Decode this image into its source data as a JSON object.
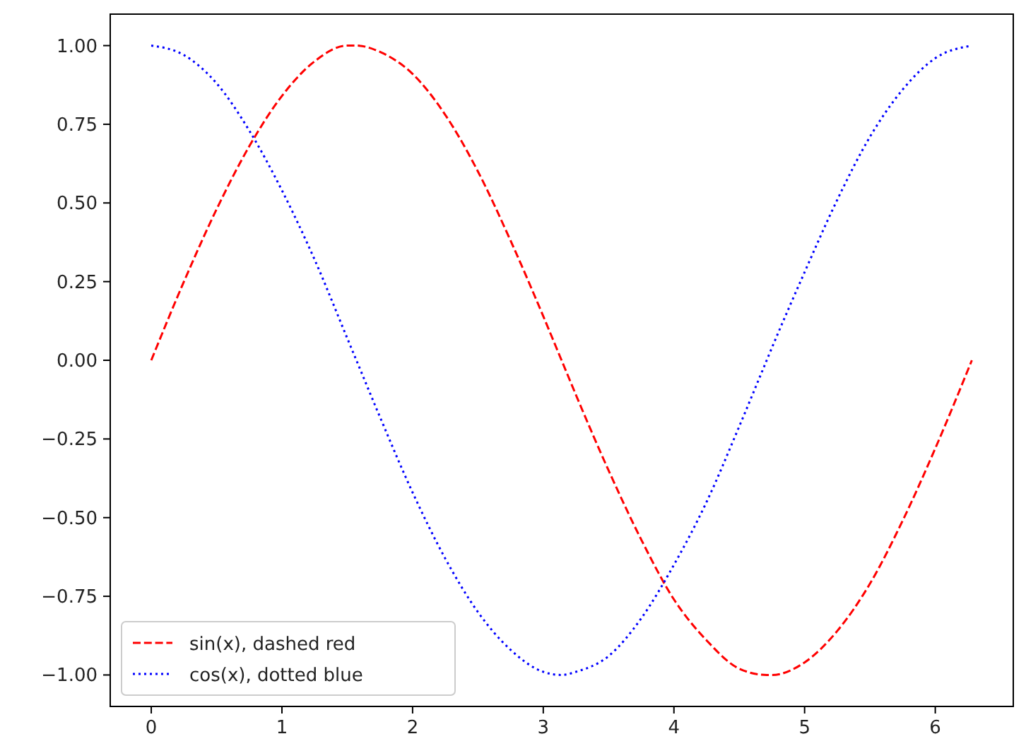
{
  "chart_data": {
    "type": "line",
    "x": [
      0,
      0.25,
      0.5,
      0.75,
      1,
      1.25,
      1.5,
      1.57,
      1.75,
      2,
      2.25,
      2.5,
      2.75,
      3,
      3.14,
      3.25,
      3.5,
      3.75,
      4,
      4.25,
      4.5,
      4.71,
      4.75,
      5,
      5.25,
      5.5,
      5.75,
      6,
      6.28
    ],
    "series": [
      {
        "name": "sin(x), dashed red",
        "color": "#ff0000",
        "line_style": "dashed",
        "values": [
          0,
          0.25,
          0.48,
          0.68,
          0.84,
          0.95,
          1.0,
          1.0,
          0.98,
          0.91,
          0.78,
          0.6,
          0.38,
          0.14,
          0,
          -0.11,
          -0.35,
          -0.57,
          -0.76,
          -0.89,
          -0.98,
          -1.0,
          -1.0,
          -0.96,
          -0.86,
          -0.71,
          -0.51,
          -0.28,
          0
        ]
      },
      {
        "name": "cos(x), dotted blue",
        "color": "#0000ff",
        "line_style": "dotted",
        "values": [
          1,
          0.97,
          0.88,
          0.73,
          0.54,
          0.32,
          0.07,
          0,
          -0.18,
          -0.42,
          -0.63,
          -0.8,
          -0.92,
          -0.99,
          -1.0,
          -0.99,
          -0.94,
          -0.82,
          -0.65,
          -0.45,
          -0.21,
          0,
          0.04,
          0.28,
          0.51,
          0.71,
          0.86,
          0.96,
          1.0
        ]
      }
    ],
    "xlim": [
      -0.314,
      6.597
    ],
    "ylim": [
      -1.1,
      1.1
    ],
    "xticks": [
      0,
      1,
      2,
      3,
      4,
      5,
      6
    ],
    "yticks": [
      {
        "value": -1,
        "label": "−1.00"
      },
      {
        "value": -0.75,
        "label": "−0.75"
      },
      {
        "value": -0.5,
        "label": "−0.50"
      },
      {
        "value": -0.25,
        "label": "−0.25"
      },
      {
        "value": 0,
        "label": "0.00"
      },
      {
        "value": 0.25,
        "label": "0.25"
      },
      {
        "value": 0.5,
        "label": "0.50"
      },
      {
        "value": 0.75,
        "label": "0.75"
      },
      {
        "value": 1,
        "label": "1.00"
      }
    ],
    "legend": "lower left"
  }
}
